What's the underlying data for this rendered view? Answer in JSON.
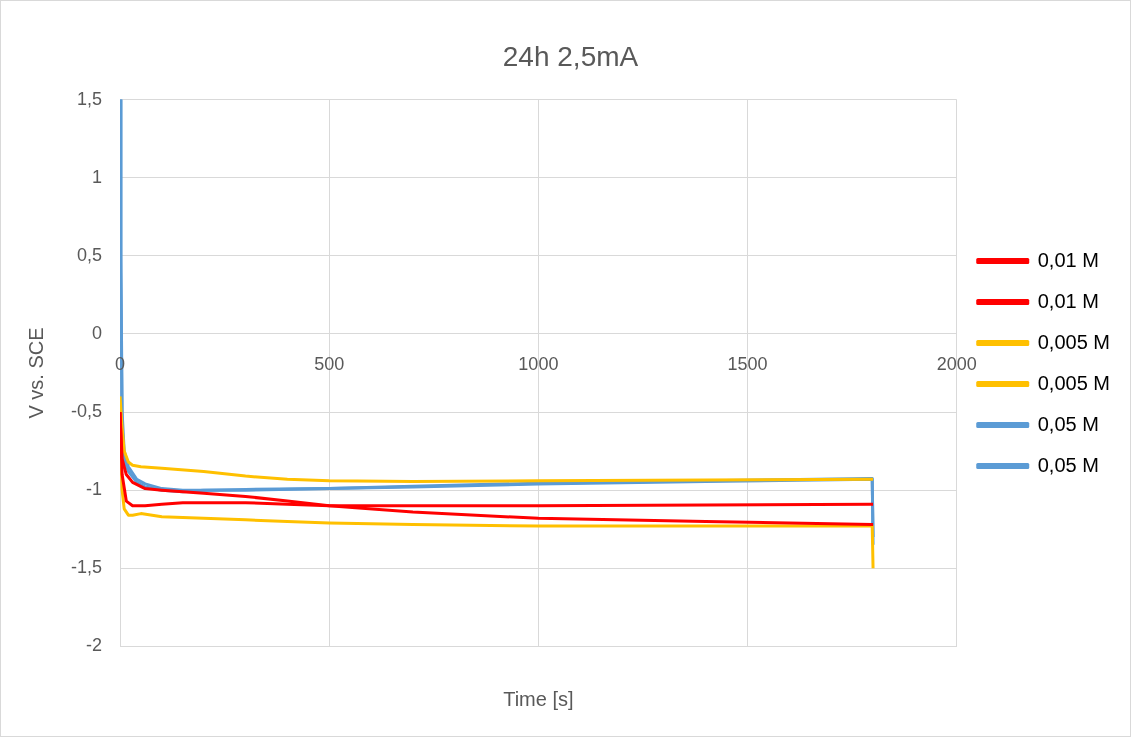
{
  "chart_data": {
    "type": "line",
    "title": "24h 2,5mA",
    "xlabel": "Time [s]",
    "ylabel": "V vs. SCE",
    "xlim": [
      0,
      2000
    ],
    "xticks": [
      0,
      500,
      1000,
      1500,
      2000
    ],
    "ylim": [
      -2,
      1.5
    ],
    "yticks": [
      -2,
      {
        "value": -1.5,
        "label": "-1,5"
      },
      -1,
      {
        "value": -0.5,
        "label": "-0,5"
      },
      0,
      {
        "value": 0.5,
        "label": "0,5"
      },
      1,
      {
        "value": 1.5,
        "label": "1,5"
      }
    ],
    "grid": true,
    "legend": "right",
    "marker": "none",
    "line_style": "solid",
    "series": [
      {
        "name": "0,01 M",
        "color": "#ff0000",
        "x": [
          0,
          5,
          15,
          30,
          60,
          100,
          150,
          200,
          300,
          400,
          500,
          700,
          1000,
          1400,
          1798,
          1800
        ],
        "values": [
          -0.5,
          -0.9,
          -1.07,
          -1.1,
          -1.1,
          -1.09,
          -1.08,
          -1.08,
          -1.08,
          -1.09,
          -1.1,
          -1.1,
          -1.1,
          -1.095,
          -1.09,
          -1.09
        ]
      },
      {
        "name": "0,01 M",
        "color": "#ff0000",
        "x": [
          0,
          5,
          15,
          30,
          60,
          100,
          150,
          200,
          300,
          400,
          500,
          700,
          1000,
          1400,
          1798,
          1800
        ],
        "values": [
          -0.5,
          -0.8,
          -0.9,
          -0.95,
          -0.99,
          -1.0,
          -1.01,
          -1.02,
          -1.04,
          -1.07,
          -1.1,
          -1.14,
          -1.18,
          -1.2,
          -1.22,
          -1.22
        ]
      },
      {
        "name": "0,005 M",
        "color": "#ffc000",
        "x": [
          0,
          5,
          10,
          20,
          30,
          50,
          100,
          200,
          300,
          400,
          500,
          700,
          1000,
          1400,
          1798,
          1800
        ],
        "values": [
          -0.4,
          -0.6,
          -0.75,
          -0.82,
          -0.84,
          -0.85,
          -0.86,
          -0.88,
          -0.91,
          -0.93,
          -0.94,
          -0.945,
          -0.94,
          -0.935,
          -0.93,
          -0.93
        ]
      },
      {
        "name": "0,005 M",
        "color": "#ffc000",
        "x": [
          0,
          5,
          10,
          20,
          30,
          50,
          100,
          200,
          300,
          400,
          500,
          700,
          1000,
          1400,
          1798,
          1800
        ],
        "values": [
          -0.6,
          -1.0,
          -1.12,
          -1.16,
          -1.16,
          -1.15,
          -1.17,
          -1.18,
          -1.19,
          -1.2,
          -1.21,
          -1.22,
          -1.23,
          -1.23,
          -1.23,
          -1.5
        ]
      },
      {
        "name": "0,05 M",
        "color": "#5b9bd5",
        "x": [
          0,
          2,
          5,
          10,
          20,
          40,
          60,
          100,
          150,
          200,
          300,
          500,
          700,
          1000,
          1400,
          1798,
          1800
        ],
        "values": [
          1.5,
          0.5,
          -0.5,
          -0.75,
          -0.85,
          -0.93,
          -0.96,
          -0.99,
          -1.0,
          -1.0,
          -1.0,
          -0.99,
          -0.98,
          -0.96,
          -0.945,
          -0.93,
          -1.35
        ]
      },
      {
        "name": "0,05 M",
        "color": "#5b9bd5",
        "x": [
          0,
          2,
          5,
          10,
          20,
          40,
          60,
          100,
          150,
          200,
          300,
          500,
          700,
          1000,
          1400,
          1798,
          1800
        ],
        "values": [
          1.5,
          0.4,
          -0.6,
          -0.8,
          -0.88,
          -0.95,
          -0.98,
          -1.0,
          -1.01,
          -1.0,
          -0.995,
          -0.99,
          -0.975,
          -0.955,
          -0.94,
          -0.925,
          -1.3
        ]
      }
    ]
  }
}
